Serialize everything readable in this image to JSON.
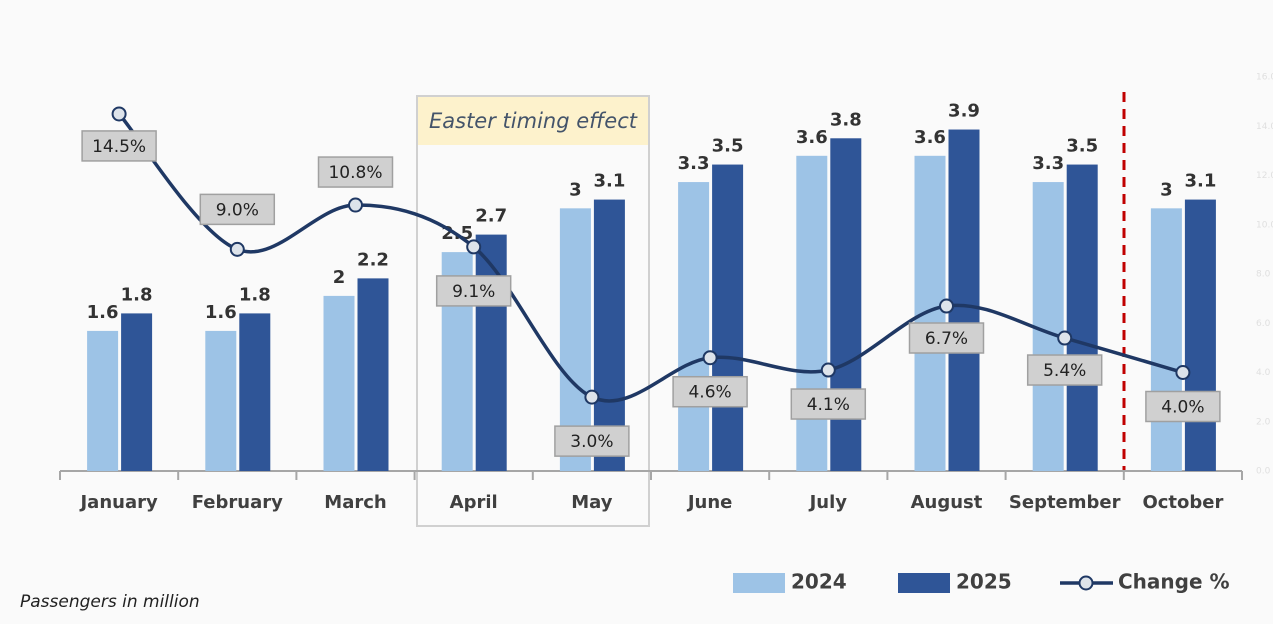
{
  "chart_data": {
    "type": "bar-line",
    "categories": [
      "January",
      "February",
      "March",
      "April",
      "May",
      "June",
      "July",
      "August",
      "September",
      "October"
    ],
    "series": [
      {
        "name": "2024",
        "color": "#9dc3e6",
        "type": "bar",
        "values": [
          1.6,
          1.6,
          2.0,
          2.5,
          3.0,
          3.3,
          3.6,
          3.6,
          3.3,
          3.0
        ]
      },
      {
        "name": "2025",
        "color": "#2f5597",
        "type": "bar",
        "values": [
          1.8,
          1.8,
          2.2,
          2.7,
          3.1,
          3.5,
          3.8,
          3.9,
          3.5,
          3.1
        ]
      },
      {
        "name": "Change %",
        "color": "#1f3864",
        "type": "line",
        "axis": "y2",
        "values": [
          14.5,
          9.0,
          10.8,
          9.1,
          3.0,
          4.6,
          4.1,
          6.7,
          5.4,
          4.0
        ],
        "value_labels": [
          "14.5%",
          "9.0%",
          "10.8%",
          "9.1%",
          "3.0%",
          "4.6%",
          "4.1%",
          "6.7%",
          "5.4%",
          "4.0%"
        ]
      }
    ],
    "ylim": [
      0,
      4.5
    ],
    "y2lim": [
      0,
      16
    ],
    "y2ticks": [
      {
        "value": 0,
        "label": "0.0"
      },
      {
        "value": 2,
        "label": "2.0"
      },
      {
        "value": 4,
        "label": "4.0"
      },
      {
        "value": 6,
        "label": "6.0"
      },
      {
        "value": 8,
        "label": "8.0"
      },
      {
        "value": 10,
        "label": "10.0"
      },
      {
        "value": 12,
        "label": "12.0"
      },
      {
        "value": 14,
        "label": "14.0"
      },
      {
        "value": 16,
        "label": "16.0"
      }
    ],
    "annotation": "Easter timing effect",
    "note": "Passengers in million",
    "legend": "bottom-right"
  }
}
